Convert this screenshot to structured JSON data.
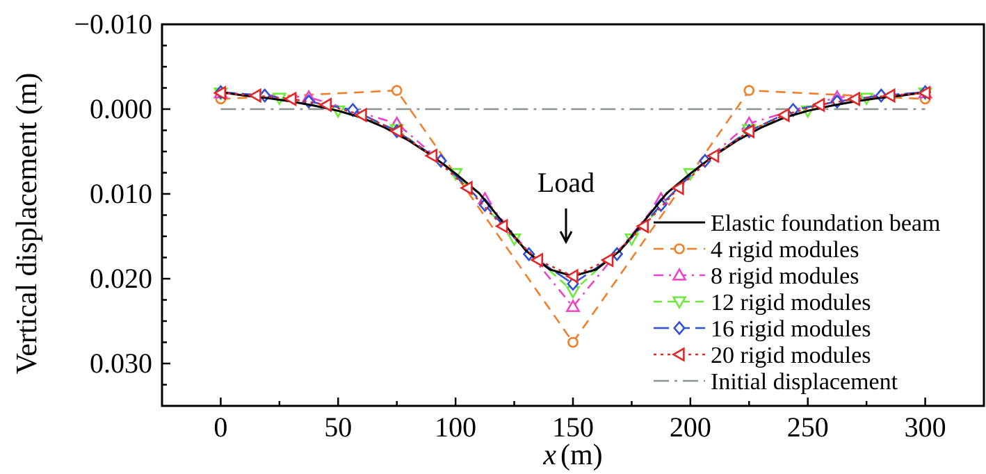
{
  "chart_data": {
    "type": "line",
    "xlabel_var": "x",
    "xlabel_unit": "(m)",
    "ylabel": "Vertical displacement (m)",
    "xlim": [
      -25,
      325
    ],
    "ylim": [
      -0.01,
      0.035
    ],
    "y_inverted": true,
    "x_ticks": [
      0,
      50,
      100,
      150,
      200,
      250,
      300
    ],
    "y_ticks": [
      -0.01,
      0.0,
      0.01,
      0.02,
      0.03
    ],
    "y_tick_labels": [
      "−0.010",
      "0.000",
      "0.010",
      "0.020",
      "0.030"
    ],
    "grid": false,
    "legend_position": "bottom-right",
    "annotation": {
      "text": "Load",
      "x": 150
    },
    "series": [
      {
        "name": "Elastic foundation beam",
        "color": "#000000",
        "dash": "",
        "marker": "none",
        "x": [
          0,
          10,
          20,
          30,
          40,
          50,
          60,
          70,
          80,
          90,
          100,
          110,
          120,
          130,
          140,
          150,
          160,
          170,
          180,
          190,
          200,
          210,
          220,
          230,
          240,
          250,
          260,
          270,
          280,
          290,
          300
        ],
        "y": [
          -0.002,
          -0.0016,
          -0.0013,
          -0.0009,
          -0.0004,
          0.0002,
          0.001,
          0.0022,
          0.0037,
          0.0055,
          0.0076,
          0.0099,
          0.0133,
          0.0167,
          0.0189,
          0.0197,
          0.0189,
          0.0167,
          0.0133,
          0.0099,
          0.0076,
          0.0055,
          0.0037,
          0.0022,
          0.001,
          0.0002,
          -0.0004,
          -0.0009,
          -0.0013,
          -0.0016,
          -0.002
        ]
      },
      {
        "name": "4 rigid modules",
        "color": "#f07f2c",
        "dash": "14,10",
        "marker": "circle",
        "x": [
          0,
          75,
          150,
          225,
          300
        ],
        "y": [
          -0.0012,
          -0.0022,
          0.0275,
          -0.0022,
          -0.0012
        ]
      },
      {
        "name": "8 rigid modules",
        "color": "#e845c4",
        "dash": "14,8,3,8",
        "marker": "triangle-up",
        "x": [
          0,
          37.5,
          75,
          112.5,
          150,
          187.5,
          225,
          262.5,
          300
        ],
        "y": [
          -0.0019,
          -0.0014,
          0.0017,
          0.0106,
          0.0233,
          0.0106,
          0.0017,
          -0.0014,
          -0.0019
        ]
      },
      {
        "name": "12 rigid modules",
        "color": "#6ee83a",
        "dash": "12,8",
        "marker": "triangle-down",
        "x": [
          0,
          25,
          50,
          75,
          100,
          125,
          150,
          175,
          200,
          225,
          250,
          275,
          300
        ],
        "y": [
          -0.0019,
          -0.0013,
          0.0002,
          0.0024,
          0.0076,
          0.0153,
          0.0215,
          0.0153,
          0.0076,
          0.0024,
          0.0002,
          -0.0013,
          -0.0019
        ]
      },
      {
        "name": "16 rigid modules",
        "color": "#3050d8",
        "dash": "22,8",
        "marker": "diamond",
        "x": [
          0,
          18.75,
          37.5,
          56.25,
          75,
          93.75,
          112.5,
          131.25,
          150,
          168.75,
          187.5,
          206.25,
          225,
          243.75,
          262.5,
          281.25,
          300
        ],
        "y": [
          -0.002,
          -0.0016,
          -0.0009,
          0.0001,
          0.0026,
          0.0061,
          0.0113,
          0.0171,
          0.0206,
          0.0171,
          0.0113,
          0.0061,
          0.0026,
          0.0001,
          -0.0009,
          -0.0016,
          -0.002
        ]
      },
      {
        "name": "20 rigid modules",
        "color": "#e02828",
        "dash": "4,6",
        "marker": "triangle-left",
        "x": [
          0,
          15,
          30,
          45,
          60,
          75,
          90,
          105,
          120,
          135,
          150,
          165,
          180,
          195,
          210,
          225,
          240,
          255,
          270,
          285,
          300
        ],
        "y": [
          -0.0019,
          -0.0016,
          -0.0012,
          -0.0005,
          0.0007,
          0.0026,
          0.0055,
          0.0093,
          0.0138,
          0.0178,
          0.0197,
          0.0178,
          0.0138,
          0.0093,
          0.0055,
          0.0026,
          0.0007,
          -0.0005,
          -0.0012,
          -0.0016,
          -0.0019
        ]
      },
      {
        "name": "Initial displacement",
        "color": "#8c9490",
        "dash": "22,8,4,8",
        "marker": "none",
        "x": [
          0,
          300
        ],
        "y": [
          0.0,
          0.0
        ]
      }
    ]
  }
}
